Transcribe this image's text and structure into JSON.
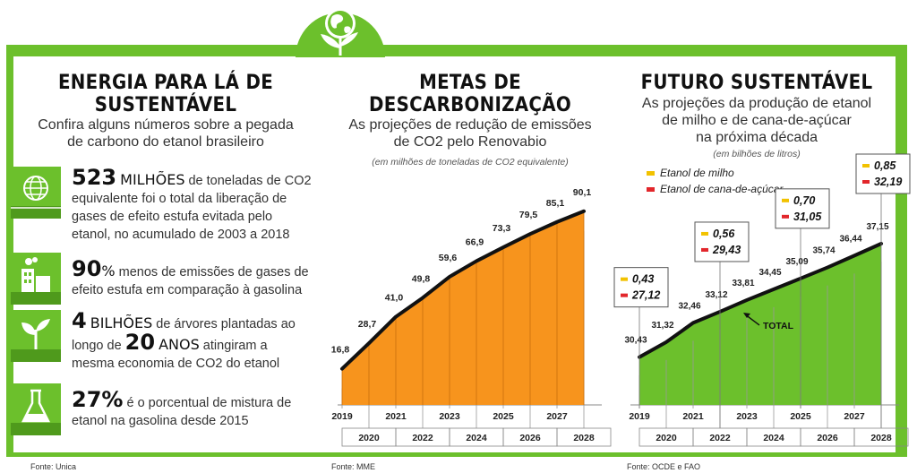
{
  "colors": {
    "green": "#6cc02c",
    "orange": "#f7941d",
    "milho": "#f2c200",
    "cana": "#e2262b",
    "line": "#111111"
  },
  "section1": {
    "title_line1": "ENERGIA PARA LÁ DE",
    "title_line2": "SUSTENTÁVEL",
    "subtitle_line1": "Confira alguns números sobre a pegada",
    "subtitle_line2": "de carbono do etanol brasileiro",
    "stats": [
      {
        "icon": "globe-icon",
        "big": "523",
        "mid": "MILHÕES",
        "rest": " de toneladas de CO2 equivalente foi o total da liberação de gases de efeito estufa evitada pelo etanol, no acumulado de 2003 a 2018"
      },
      {
        "icon": "factory-icon",
        "big": "90",
        "mid": "%",
        "rest": " menos de emissões de gases de efeito estufa em comparação à gasolina"
      },
      {
        "icon": "sprout-icon",
        "big": "4",
        "mid": "BILHÕES",
        "rest": " de árvores plantadas ao longo de ",
        "big2": "20",
        "mid2": "ANOS",
        "rest2": " atingiram a mesma economia de CO2 do etanol"
      },
      {
        "icon": "flask-icon",
        "big": "27%",
        "mid": "",
        "rest": " é o porcentual de mistura de etanol na gasolina desde 2015"
      }
    ],
    "source": "Fonte: Unica"
  },
  "section2": {
    "title_line1": "METAS DE",
    "title_line2": "DESCARBONIZAÇÃO",
    "subtitle_line1": "As projeções de redução de emissões",
    "subtitle_line2": "de CO2 pelo Renovabio",
    "unit_note": "(em milhões de toneladas de CO2 equivalente)",
    "source": "Fonte: MME"
  },
  "section3": {
    "title": "FUTURO SUSTENTÁVEL",
    "subtitle_line1": "As projeções da produção de etanol",
    "subtitle_line2": "de milho e de cana-de-açúcar",
    "subtitle_line3": "na próxima década",
    "unit_note": "(em bilhões de litros)",
    "legend_milho": "Etanol de milho",
    "legend_cana": "Etanol de cana-de-açúcar",
    "total_label": "TOTAL",
    "source": "Fonte: OCDE e FAO"
  },
  "chart_data": [
    {
      "type": "area",
      "title": "METAS DE DESCARBONIZAÇÃO",
      "unit": "(em milhões de toneladas de CO2 equivalente)",
      "x": [
        2019,
        2020,
        2021,
        2022,
        2023,
        2024,
        2025,
        2026,
        2027,
        2028
      ],
      "values": [
        16.8,
        28.7,
        41.0,
        49.8,
        59.6,
        66.9,
        73.3,
        79.5,
        85.1,
        90.1
      ],
      "labels": [
        "16,8",
        "28,7",
        "41,0",
        "49,8",
        "59,6",
        "66,9",
        "73,3",
        "79,5",
        "85,1",
        "90,1"
      ],
      "fill": "#f7941d"
    },
    {
      "type": "area",
      "title": "FUTURO SUSTENTÁVEL",
      "unit": "(em bilhões de litros)",
      "x": [
        2019,
        2020,
        2021,
        2022,
        2023,
        2024,
        2025,
        2026,
        2027,
        2028
      ],
      "series": [
        {
          "name": "TOTAL",
          "values": [
            30.43,
            31.32,
            32.46,
            33.12,
            33.81,
            34.45,
            35.09,
            35.74,
            36.44,
            37.15
          ],
          "labels": [
            "30,43",
            "31,32",
            "32,46",
            "33,12",
            "33,81",
            "34,45",
            "35,09",
            "35,74",
            "36,44",
            "37,15"
          ]
        }
      ],
      "callouts": [
        {
          "year": 2019,
          "milho": "0,43",
          "cana": "27,12"
        },
        {
          "year": 2022,
          "milho": "0,56",
          "cana": "29,43"
        },
        {
          "year": 2025,
          "milho": "0,70",
          "cana": "31,05"
        },
        {
          "year": 2028,
          "milho": "0,85",
          "cana": "32,19"
        }
      ],
      "legend": [
        "Etanol de milho",
        "Etanol de cana-de-açúcar"
      ],
      "fill": "#6cc02c"
    }
  ]
}
